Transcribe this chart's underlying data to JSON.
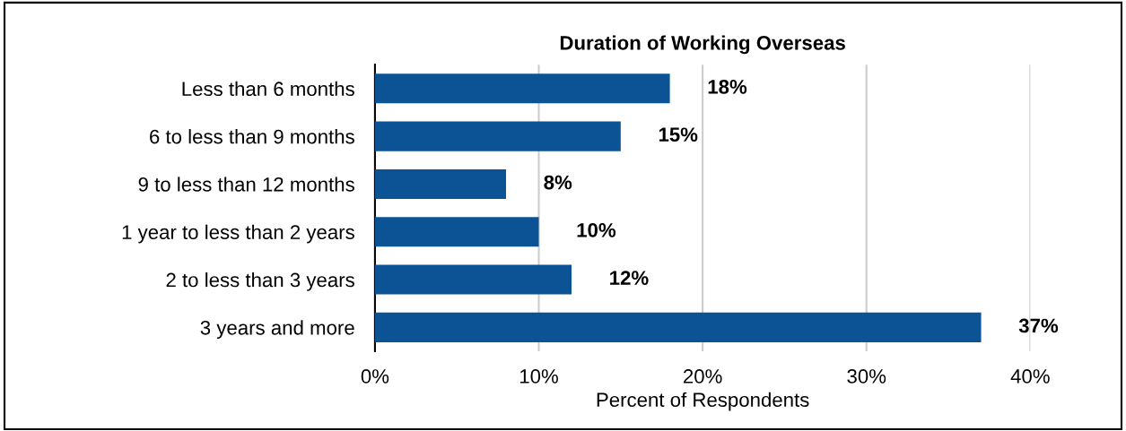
{
  "chart_data": {
    "type": "bar",
    "orientation": "horizontal",
    "title": "Duration of Working Overseas",
    "xlabel": "Percent of Respondents",
    "categories": [
      "Less than 6 months",
      "6 to less than 9 months",
      "9 to less than 12 months",
      "1 year to less than 2 years",
      "2 to less than 3 years",
      "3 years and more"
    ],
    "values": [
      18,
      15,
      8,
      10,
      12,
      37
    ],
    "color": "#0b5394",
    "value_labels": [
      "18%",
      "15%",
      "8%",
      "10%",
      "12%",
      "37%"
    ],
    "xlim": [
      0,
      40
    ],
    "xticks": [
      {
        "value": 0,
        "label": "0%"
      },
      {
        "value": 10,
        "label": "10%"
      },
      {
        "value": 20,
        "label": "20%"
      },
      {
        "value": 30,
        "label": "30%"
      },
      {
        "value": 40,
        "label": "40%"
      }
    ],
    "grid": "x",
    "legend": false
  }
}
